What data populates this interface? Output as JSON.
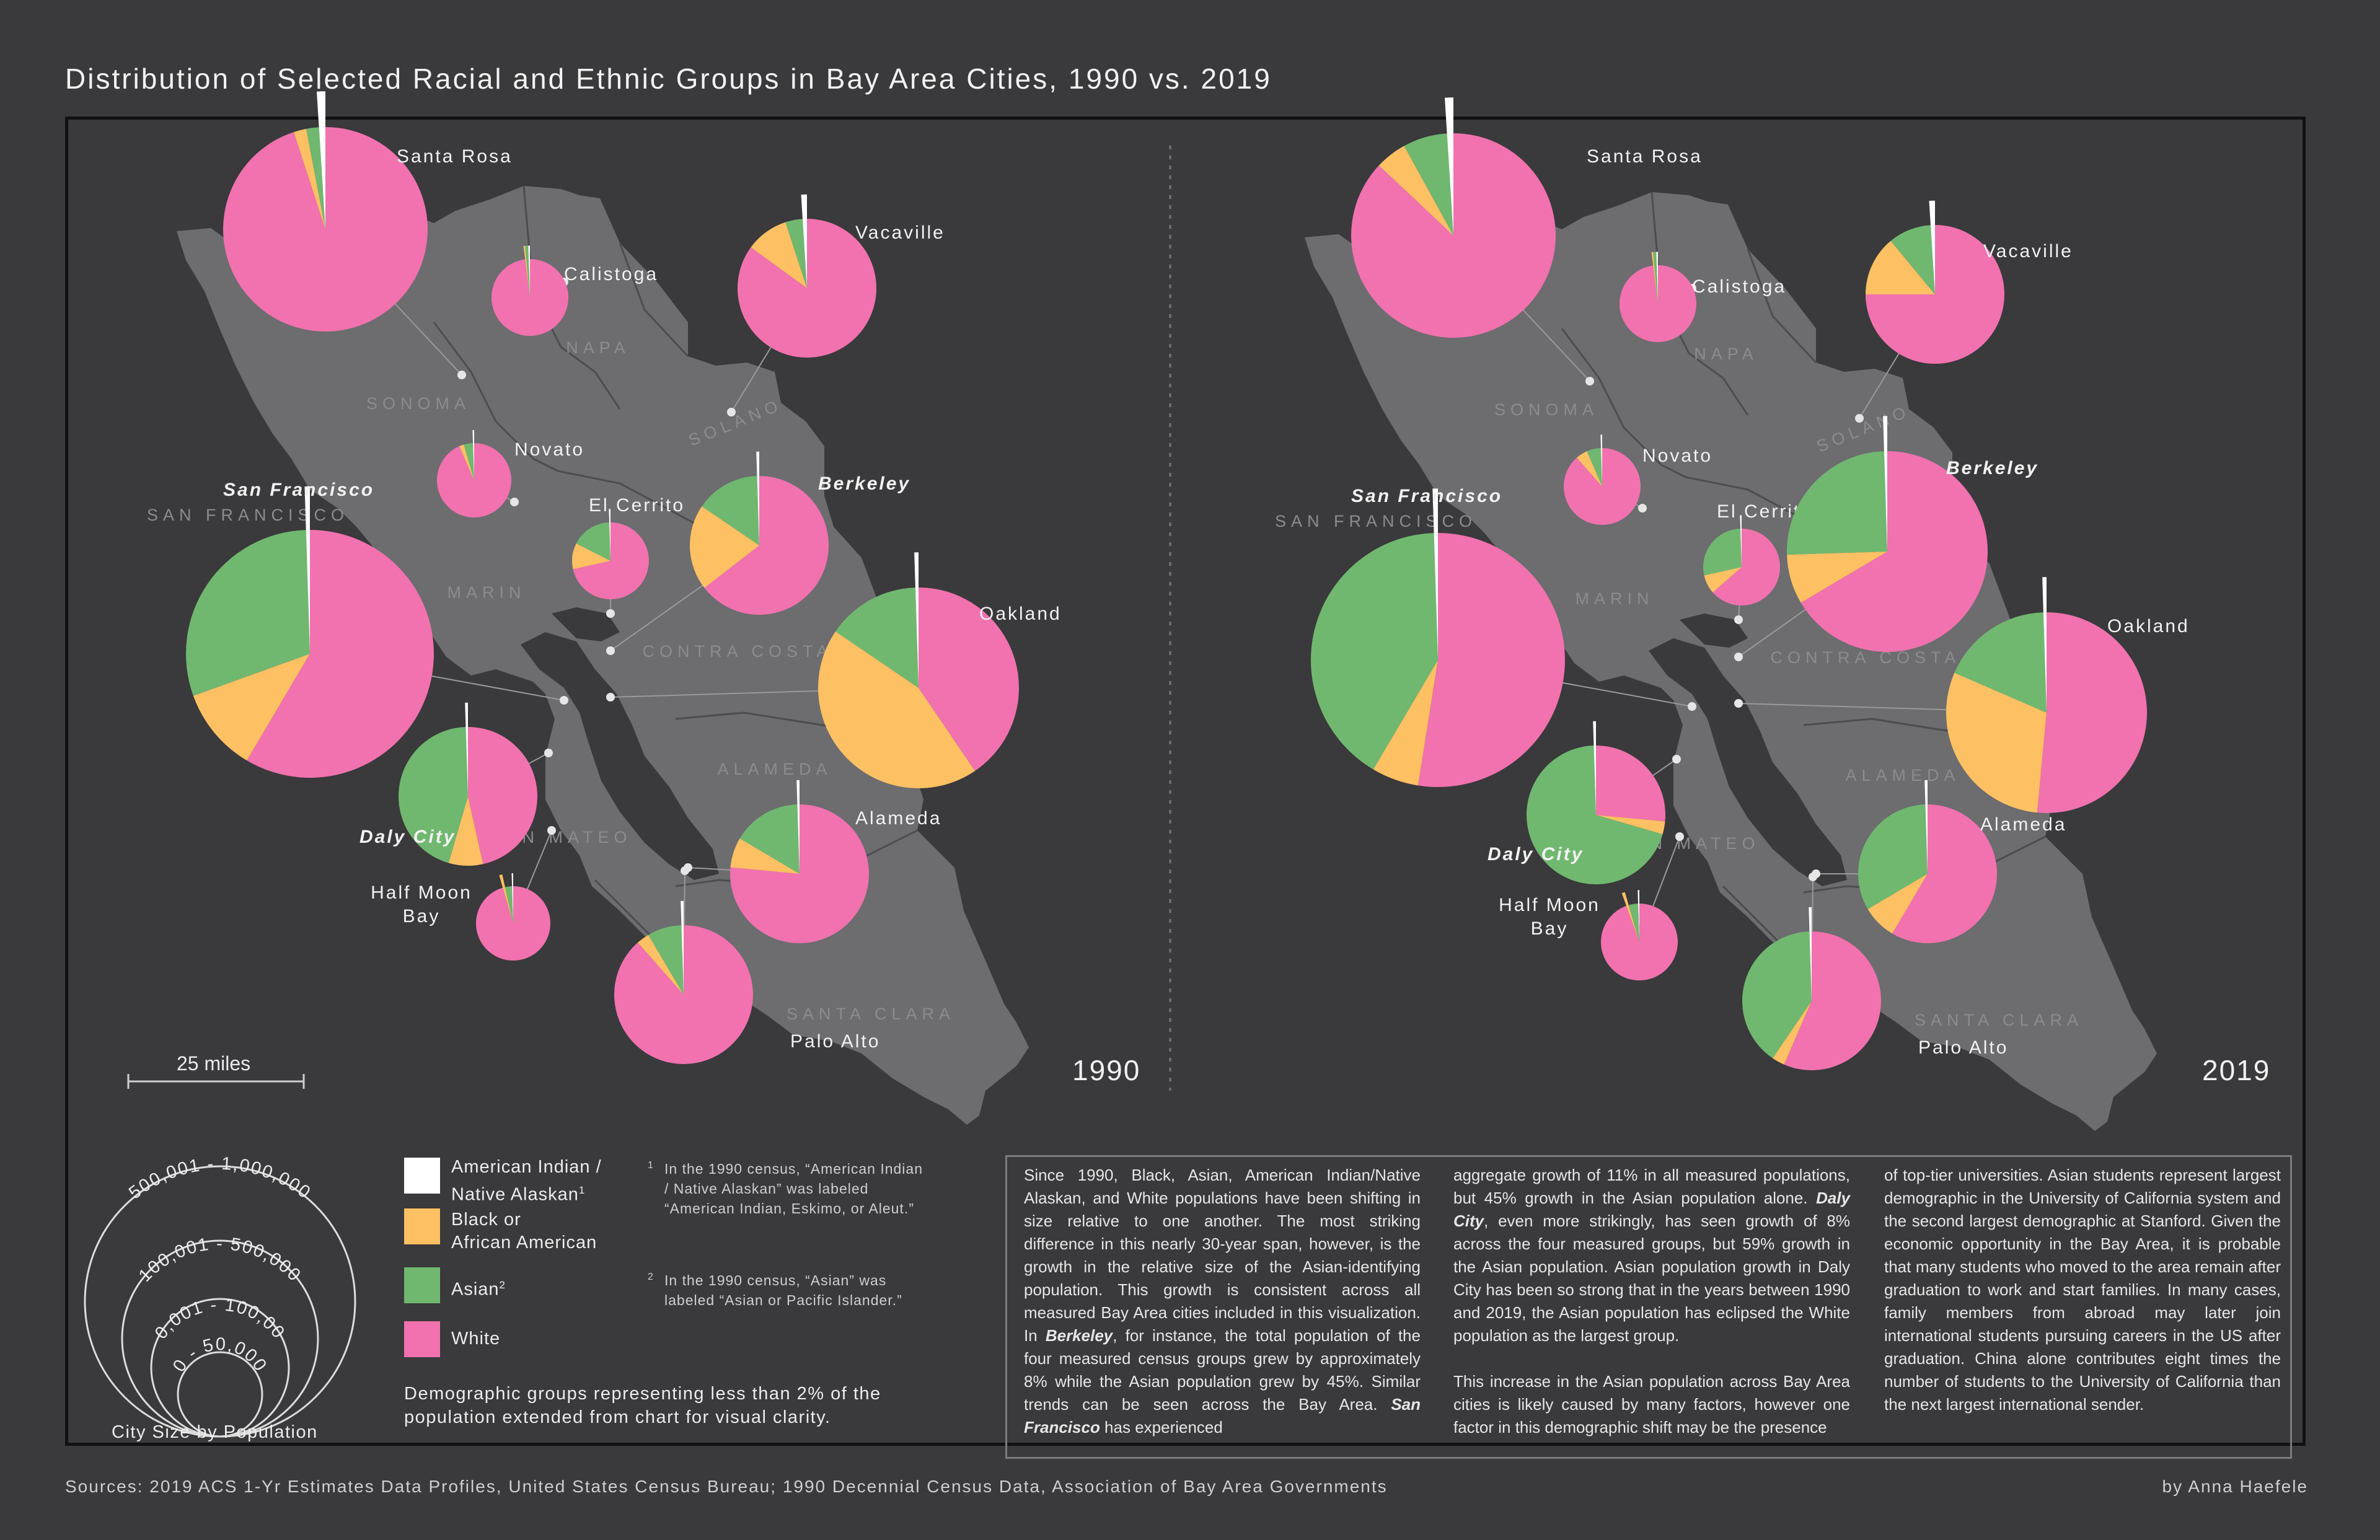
{
  "title": "Distribution of Selected Racial and Ethnic Groups in Bay Area Cities, 1990 vs. 2019",
  "colors": {
    "native": "#ffffff",
    "black": "#fdc063",
    "asian": "#70b870",
    "white": "#f172ae",
    "land": "#6d6c6e",
    "bg": "#3a393b"
  },
  "maps": [
    {
      "year": "1990",
      "cities": [
        {
          "name": "Santa Rosa",
          "bold": false,
          "shares": [
            1,
            2,
            2,
            95
          ]
        },
        {
          "name": "Calistoga",
          "bold": false,
          "shares": [
            0.5,
            0.5,
            1,
            98
          ]
        },
        {
          "name": "Vacaville",
          "bold": false,
          "shares": [
            1,
            10,
            4,
            85
          ]
        },
        {
          "name": "Novato",
          "bold": false,
          "shares": [
            0.5,
            2,
            4,
            93.5
          ]
        },
        {
          "name": "El Cerrito",
          "bold": false,
          "shares": [
            0.5,
            11,
            17,
            71.5
          ]
        },
        {
          "name": "Berkeley",
          "bold": true,
          "shares": [
            0.5,
            20,
            15,
            64.5
          ]
        },
        {
          "name": "San Francisco",
          "bold": true,
          "shares": [
            0.5,
            11,
            30,
            58.5
          ]
        },
        {
          "name": "Oakland",
          "bold": false,
          "shares": [
            0.5,
            44,
            15,
            40.5
          ]
        },
        {
          "name": "Daly City",
          "bold": true,
          "shares": [
            0.5,
            8,
            45,
            46.5
          ]
        },
        {
          "name": "Half Moon Bay",
          "bold": false,
          "shares": [
            0.5,
            1,
            3,
            95.5
          ]
        },
        {
          "name": "Alameda",
          "bold": false,
          "shares": [
            0.5,
            7,
            16,
            76.5
          ]
        },
        {
          "name": "Palo Alto",
          "bold": false,
          "shares": [
            0.5,
            3,
            8,
            88.5
          ]
        }
      ]
    },
    {
      "year": "2019",
      "cities": [
        {
          "name": "Santa Rosa",
          "bold": false,
          "shares": [
            1,
            5,
            7,
            87
          ]
        },
        {
          "name": "Calistoga",
          "bold": false,
          "shares": [
            0.5,
            0.5,
            1,
            98
          ]
        },
        {
          "name": "Vacaville",
          "bold": false,
          "shares": [
            1,
            14,
            10,
            75
          ]
        },
        {
          "name": "Novato",
          "bold": false,
          "shares": [
            0.5,
            5,
            6,
            88.5
          ]
        },
        {
          "name": "El Cerrito",
          "bold": false,
          "shares": [
            0.5,
            8,
            28,
            63.5
          ]
        },
        {
          "name": "Berkeley",
          "bold": true,
          "shares": [
            0.5,
            8,
            25,
            66.5
          ]
        },
        {
          "name": "San Francisco",
          "bold": true,
          "shares": [
            0.5,
            6,
            41,
            52.5
          ]
        },
        {
          "name": "Oakland",
          "bold": false,
          "shares": [
            0.5,
            30,
            18,
            51.5
          ]
        },
        {
          "name": "Daly City",
          "bold": true,
          "shares": [
            0.5,
            3,
            70,
            26.5
          ]
        },
        {
          "name": "Half Moon Bay",
          "bold": false,
          "shares": [
            0.5,
            1,
            4,
            94.5
          ]
        },
        {
          "name": "Alameda",
          "bold": false,
          "shares": [
            0.5,
            8,
            33,
            58.5
          ]
        },
        {
          "name": "Palo Alto",
          "bold": false,
          "shares": [
            0.5,
            3,
            40,
            56.5
          ]
        }
      ]
    }
  ],
  "counties": [
    {
      "name": "SONOMA"
    },
    {
      "name": "NAPA"
    },
    {
      "name": "SOLANO"
    },
    {
      "name": "MARIN"
    },
    {
      "name": "SAN FRANCISCO"
    },
    {
      "name": "CONTRA COSTA"
    },
    {
      "name": "ALAMEDA"
    },
    {
      "name": "SAN MATEO"
    },
    {
      "name": "SANTA CLARA"
    }
  ],
  "scale_label": "25 miles",
  "size_legend": {
    "title": "City Size by Population",
    "rings": [
      "500,001 - 1,000,000",
      "100,001 - 500,000",
      "50,001 - 100,000",
      "0 - 50,000"
    ]
  },
  "legend": {
    "native": "American Indian / Native Alaskan",
    "native_sup": "1",
    "black_line1": "Black or",
    "black_line2": "African American",
    "asian": "Asian",
    "asian_sup": "2",
    "white": "White",
    "fn1_num": "1",
    "fn1": "In the 1990 census, “American Indian / Native Alaskan” was labeled “American Indian, Eskimo, or Aleut.”",
    "fn2_num": "2",
    "fn2": "In the 1990 census, “Asian” was labeled “Asian or Pacific Islander.”",
    "note": "Demographic groups representing less than 2% of the population extended from chart for visual clarity."
  },
  "text": {
    "c1_a": "Since 1990, Black, Asian, American Indian/Native Alaskan, and White populations have been shifting in size relative to one another. The most striking difference in this nearly 30-year span, however, is the growth in the relative size of the Asian-identifying population. This growth is consistent across all measured Bay Area cities included in this visualization. In ",
    "c1_b": "Berkeley",
    "c1_c": ", for instance, the total population of the four measured census groups grew by approximately 8% while the Asian population grew by 45%. Similar trends can be seen across the Bay Area. ",
    "c1_d": "San Francisco",
    "c1_e": " has experienced",
    "c2_a": "aggregate growth of 11% in all measured populations, but 45% growth in the Asian population alone. ",
    "c2_b": "Daly City",
    "c2_c": ", even more strikingly, has seen growth of 8% across the four measured groups, but 59% growth in the Asian population. Asian population growth in Daly City has been so strong that in the years between 1990 and 2019, the Asian population has eclipsed the White population as the largest group.",
    "c2_p2": "This increase in the Asian population across Bay Area cities is likely caused by many factors, however one factor in this demographic shift may be the presence",
    "c3": "of top-tier universities. Asian students represent largest demographic in the University of California system and the second largest demographic at Stanford. Given the economic opportunity in the Bay Area, it is probable that many students who moved to the area remain after graduation to work and start families. In many cases, family members from abroad may later join international students pursuing careers in the US after graduation. China alone contributes eight times the number of students to the University of California than the next largest international sender."
  },
  "sources": "Sources: 2019 ACS 1-Yr Estimates Data Profiles, United States Census Bureau; 1990 Decennial Census Data, Association of Bay Area Governments",
  "byline": "by Anna Haefele"
}
